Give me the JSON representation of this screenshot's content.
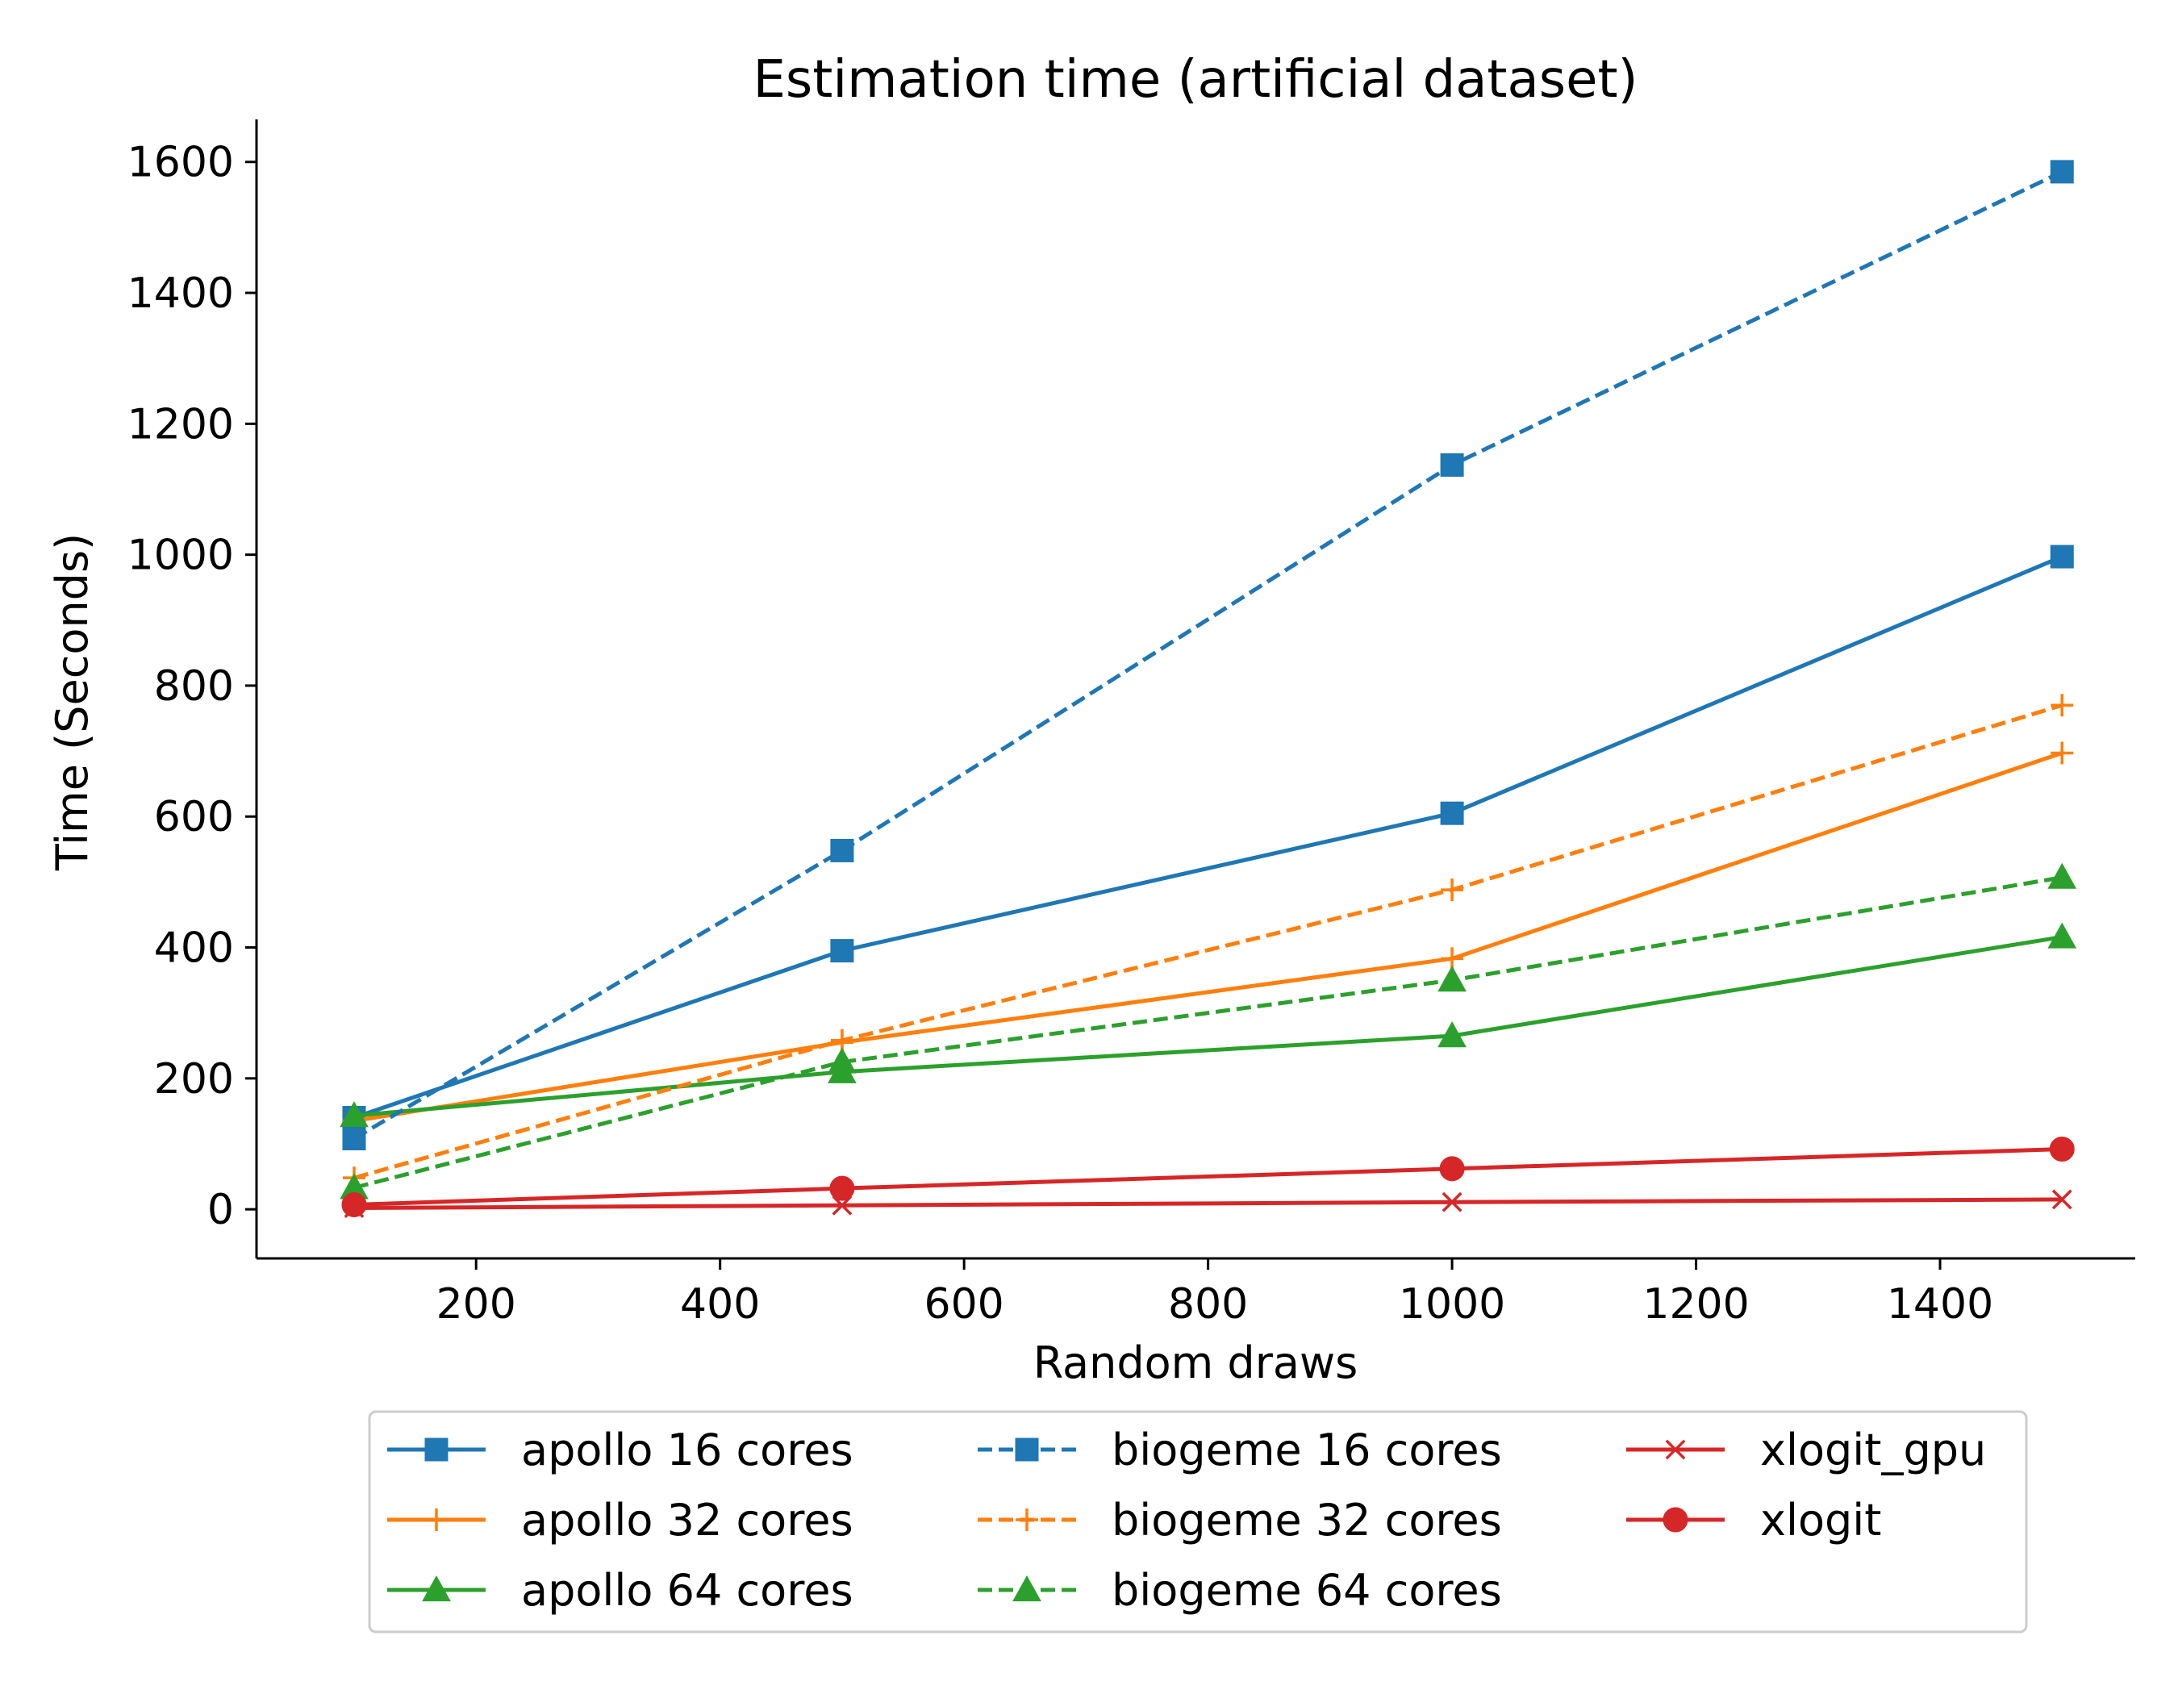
{
  "chart_data": {
    "type": "line",
    "title": "Estimation time (artificial dataset)",
    "xlabel": "Random draws",
    "ylabel": "Time (Seconds)",
    "xlim": [
      20,
      1560
    ],
    "ylim": [
      -75,
      1665
    ],
    "xticks": [
      200,
      400,
      600,
      800,
      1000,
      1200,
      1400
    ],
    "yticks": [
      0,
      200,
      400,
      600,
      800,
      1000,
      1200,
      1400,
      1600
    ],
    "grid": false,
    "legend_position": "bottom-center, below plot, 3 columns",
    "x": [
      100,
      500,
      1000,
      1500
    ],
    "series": [
      {
        "name": "apollo 16 cores",
        "values": [
          140,
          395,
          605,
          997
        ],
        "color": "#1f77b4",
        "linestyle": "solid",
        "marker": "square"
      },
      {
        "name": "apollo 32 cores",
        "values": [
          135,
          255,
          383,
          697
        ],
        "color": "#ff7f0e",
        "linestyle": "solid",
        "marker": "plus"
      },
      {
        "name": "apollo 64 cores",
        "values": [
          143,
          210,
          265,
          416
        ],
        "color": "#2ca02c",
        "linestyle": "solid",
        "marker": "triangle"
      },
      {
        "name": "biogeme 16 cores",
        "values": [
          108,
          548,
          1137,
          1585
        ],
        "color": "#1f77b4",
        "linestyle": "dashed",
        "marker": "square"
      },
      {
        "name": "biogeme 32 cores",
        "values": [
          48,
          258,
          488,
          770
        ],
        "color": "#ff7f0e",
        "linestyle": "dashed",
        "marker": "plus"
      },
      {
        "name": "biogeme 64 cores",
        "values": [
          33,
          225,
          350,
          507
        ],
        "color": "#2ca02c",
        "linestyle": "dashed",
        "marker": "triangle"
      },
      {
        "name": "xlogit_gpu",
        "values": [
          2,
          6,
          11,
          15
        ],
        "color": "#d62728",
        "linestyle": "solid",
        "marker": "x"
      },
      {
        "name": "xlogit",
        "values": [
          7,
          32,
          62,
          92
        ],
        "color": "#d62728",
        "linestyle": "solid",
        "marker": "circle"
      }
    ]
  }
}
